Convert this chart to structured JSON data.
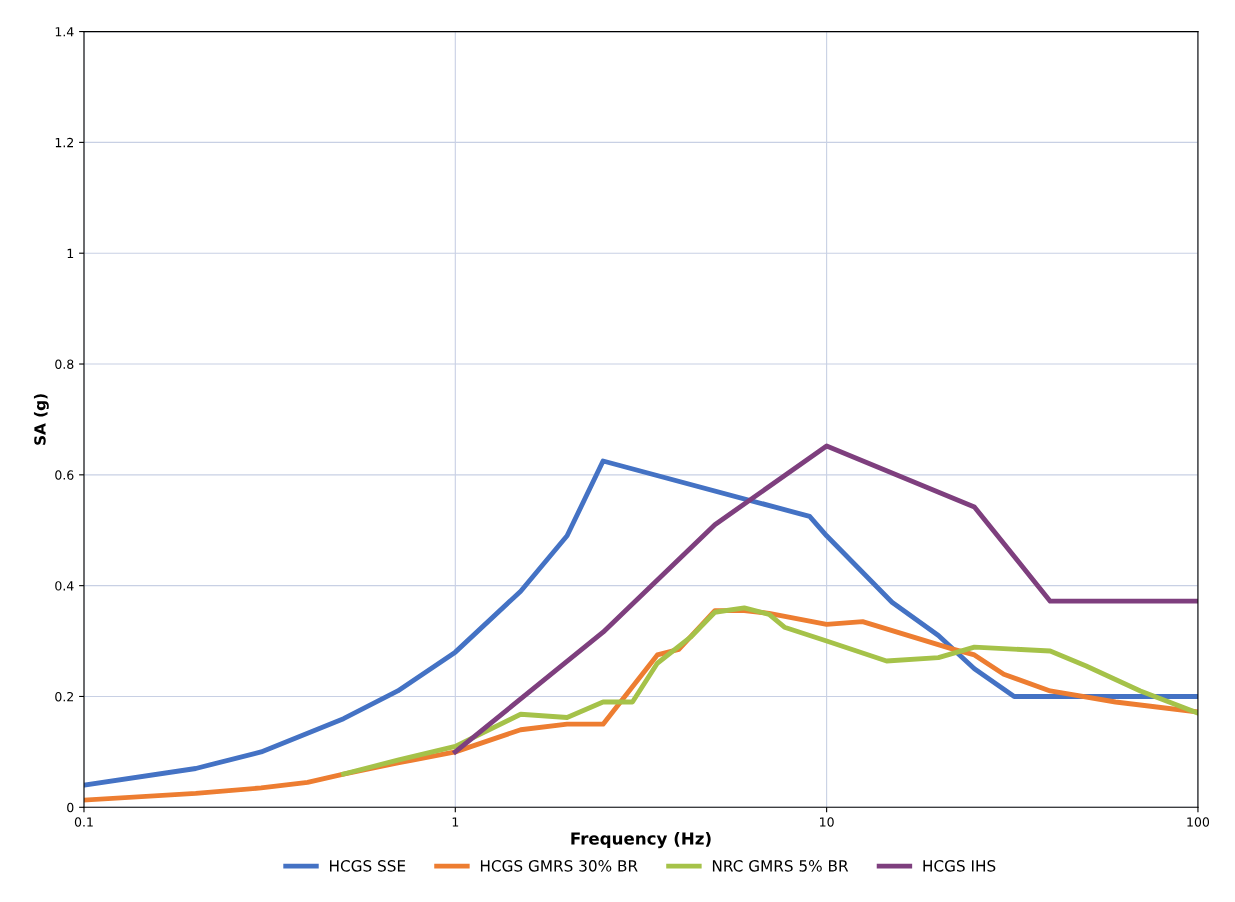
{
  "chart_data": {
    "type": "line",
    "xlabel": "Frequency (Hz)",
    "ylabel": "SA (g)",
    "log": "x",
    "xlim": [
      0.1,
      100
    ],
    "xticks": [
      0.1,
      1,
      10,
      100
    ],
    "ylim": [
      0,
      1.4
    ],
    "yticks": [
      0,
      0.2,
      0.4,
      0.6,
      0.8,
      1,
      1.2,
      1.4
    ],
    "grid": true,
    "legend": "bottom",
    "marker": "none",
    "line_style": "solid",
    "series": [
      {
        "name": "HCGS SSE",
        "color": "#4472c4",
        "x": [
          0.1,
          0.2,
          0.3,
          0.5,
          0.7,
          1,
          1.5,
          2,
          2.5,
          9,
          10,
          15,
          20,
          25,
          32,
          100
        ],
        "values": [
          0.04,
          0.07,
          0.1,
          0.16,
          0.21,
          0.28,
          0.39,
          0.49,
          0.625,
          0.525,
          0.49,
          0.37,
          0.31,
          0.25,
          0.2,
          0.2
        ]
      },
      {
        "name": "HCGS GMRS 30% BR",
        "color": "#ed7d31",
        "x": [
          0.1,
          0.2,
          0.3,
          0.4,
          0.5,
          0.7,
          1,
          1.5,
          2,
          2.5,
          3.5,
          4,
          5,
          6,
          7,
          10,
          12.5,
          22,
          25,
          30,
          40,
          60,
          100
        ],
        "values": [
          0.013,
          0.025,
          0.035,
          0.045,
          0.06,
          0.08,
          0.1,
          0.14,
          0.15,
          0.15,
          0.275,
          0.285,
          0.355,
          0.355,
          0.35,
          0.33,
          0.335,
          0.285,
          0.275,
          0.24,
          0.21,
          0.19,
          0.172
        ]
      },
      {
        "name": "NRC GMRS 5% BR",
        "color": "#a5c249",
        "x": [
          0.5,
          0.7,
          1,
          1.5,
          2,
          2.5,
          3,
          3.5,
          4.3,
          5,
          6,
          7,
          7.7,
          10,
          14.5,
          20,
          25,
          40,
          50,
          70,
          100
        ],
        "values": [
          0.06,
          0.085,
          0.11,
          0.168,
          0.162,
          0.19,
          0.19,
          0.26,
          0.307,
          0.352,
          0.36,
          0.348,
          0.325,
          0.3,
          0.264,
          0.27,
          0.289,
          0.282,
          0.255,
          0.21,
          0.17
        ]
      },
      {
        "name": "HCGS IHS",
        "color": "#7e3f7e",
        "x": [
          1,
          2.5,
          5,
          10,
          25,
          40,
          100
        ],
        "values": [
          0.1,
          0.316,
          0.51,
          0.652,
          0.542,
          0.372,
          0.372
        ]
      }
    ]
  }
}
